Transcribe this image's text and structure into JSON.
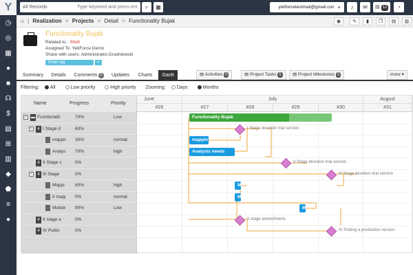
{
  "topbar": {
    "module_select": "All Records",
    "search_placeholder": "Type keyword and press ent",
    "user_email": "yetiforcetestmail@gmail.com",
    "notifications_count": "12"
  },
  "breadcrumb": {
    "home": "⌂",
    "module": "Realization",
    "section": "Projects",
    "detail": "Detail",
    "record": "Functionality Bujak"
  },
  "record": {
    "title": "Functionality Bujak",
    "related_label": "Related to -",
    "related_value": "Shell",
    "assigned": "Assigned To: YetiForce Demo",
    "shared": "Share with users: Administrator,Grudniewski",
    "tag_placeholder": "Enter tag",
    "tag_add": "+"
  },
  "tabs": [
    {
      "label": "Summary",
      "count": ""
    },
    {
      "label": "Details",
      "count": ""
    },
    {
      "label": "Comments",
      "count": "0"
    },
    {
      "label": "Updates",
      "count": ""
    },
    {
      "label": "Charts",
      "count": ""
    },
    {
      "label": "Gantt",
      "count": ""
    }
  ],
  "related_tabs": [
    {
      "label": "Activities",
      "count": "0"
    },
    {
      "label": "Project Tasks",
      "count": "5"
    },
    {
      "label": "Project Milestones",
      "count": "5"
    }
  ],
  "more_label": "more",
  "filters": {
    "filtering_label": "Filtering:",
    "options": [
      "All",
      "Low priority",
      "High priority"
    ],
    "selected": "All",
    "zooming_label": "Zooming:",
    "zoom_options": [
      "Days",
      "Months"
    ],
    "zoom_selected": "Months"
  },
  "gantt": {
    "columns": [
      "Name",
      "Progress",
      "Priority"
    ],
    "months": [
      "June",
      "July",
      "August"
    ],
    "weeks": [
      "#26",
      "#27",
      "#28",
      "#29",
      "#30",
      "#31"
    ],
    "rows": [
      {
        "name": "Functionalit",
        "progress": "70%",
        "priority": "Low",
        "type": "project"
      },
      {
        "name": "I Stage d",
        "progress": "63%",
        "priority": "",
        "type": "milestone"
      },
      {
        "name": "mappin",
        "progress": "30%",
        "priority": "normal",
        "type": "task"
      },
      {
        "name": "Analys",
        "progress": "70%",
        "priority": "high",
        "type": "task"
      },
      {
        "name": "II Stage c",
        "progress": "0%",
        "priority": "",
        "type": "milestone"
      },
      {
        "name": "III Stage",
        "progress": "0%",
        "priority": "",
        "type": "milestone"
      },
      {
        "name": "Mappi",
        "progress": "60%",
        "priority": "high",
        "type": "task"
      },
      {
        "name": "II mapp",
        "progress": "0%",
        "priority": "normal",
        "type": "task"
      },
      {
        "name": "Moduk",
        "progress": "90%",
        "priority": "Low",
        "type": "task"
      },
      {
        "name": "II stage a",
        "progress": "0%",
        "priority": "",
        "type": "milestone"
      },
      {
        "name": "IV Puttin",
        "progress": "0%",
        "priority": "",
        "type": "milestone"
      }
    ],
    "bars": {
      "project": "Functionality Bujak",
      "task1": "mappin",
      "task2": "Analysis needs",
      "task3": "M",
      "task4": "M",
      "task5": "M"
    },
    "milestones": [
      "I Stage devotion trial version",
      "II Stage devotion trial version",
      "III Stage devotion trial version",
      "II stage amendments",
      "IV Putting a production version"
    ]
  }
}
